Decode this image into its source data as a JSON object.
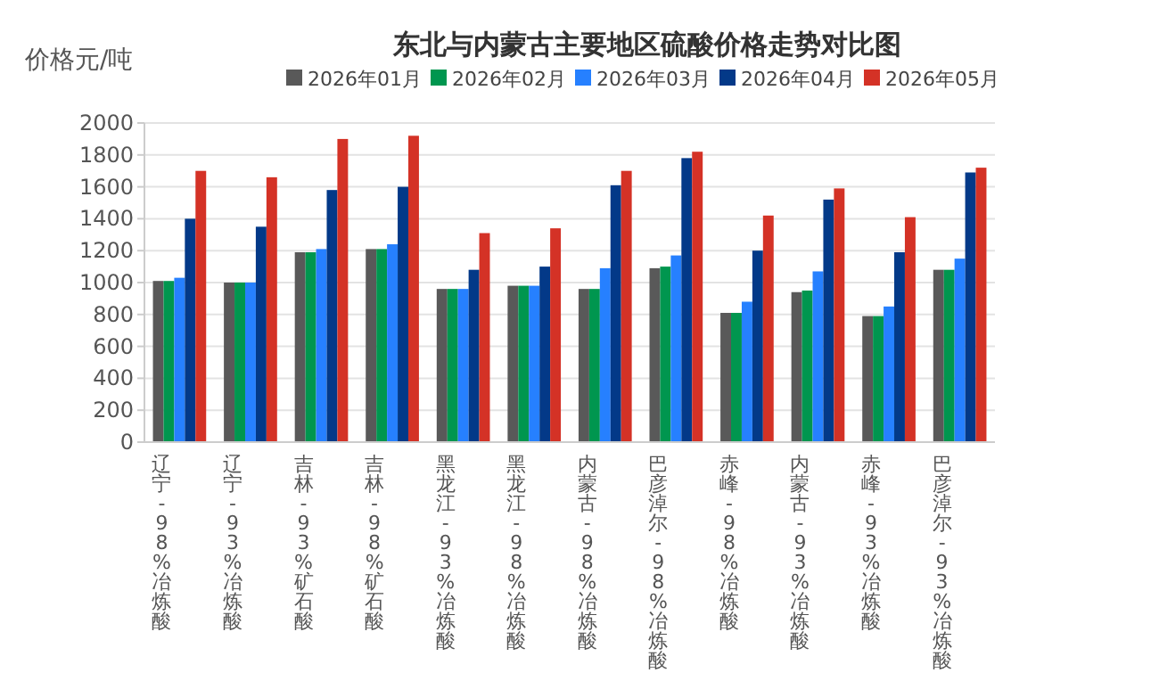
{
  "chart_data": {
    "type": "bar",
    "title": "东北与内蒙古主要地区硫酸价格走势对比图",
    "ylabel": "价格元/吨",
    "categories": [
      "辽宁-98%冶炼酸",
      "辽宁-93%冶炼酸",
      "吉林-93%矿石酸",
      "吉林-98%矿石酸",
      "黑龙江-93%冶炼酸",
      "黑龙江-98%冶炼酸",
      "内蒙古-98%冶炼酸",
      "巴彦淖尔-98%冶炼酸",
      "赤峰-98%冶炼酸",
      "内蒙古-93%冶炼酸",
      "赤峰-93%冶炼酸",
      "巴彦淖尔-93%冶炼酸"
    ],
    "series": [
      {
        "name": "2026年01月",
        "color": "#595959",
        "values": [
          1010,
          1000,
          1190,
          1210,
          960,
          980,
          960,
          1090,
          810,
          940,
          790,
          1080
        ]
      },
      {
        "name": "2026年02月",
        "color": "#00964f",
        "values": [
          1010,
          1000,
          1190,
          1210,
          960,
          980,
          960,
          1100,
          810,
          950,
          790,
          1080
        ]
      },
      {
        "name": "2026年03月",
        "color": "#2680ff",
        "values": [
          1030,
          1000,
          1210,
          1240,
          960,
          980,
          1090,
          1170,
          880,
          1070,
          850,
          1150
        ]
      },
      {
        "name": "2026年04月",
        "color": "#033988",
        "values": [
          1400,
          1350,
          1580,
          1600,
          1080,
          1100,
          1610,
          1780,
          1200,
          1520,
          1190,
          1690
        ]
      },
      {
        "name": "2026年05月",
        "color": "#d43226",
        "values": [
          1700,
          1660,
          1900,
          1920,
          1310,
          1340,
          1700,
          1820,
          1420,
          1590,
          1410,
          1720
        ]
      }
    ],
    "ylim": [
      0,
      2000
    ],
    "yticks": [
      0,
      200,
      400,
      600,
      800,
      1000,
      1200,
      1400,
      1600,
      1800,
      2000
    ],
    "grid": "y",
    "legend": "top"
  }
}
